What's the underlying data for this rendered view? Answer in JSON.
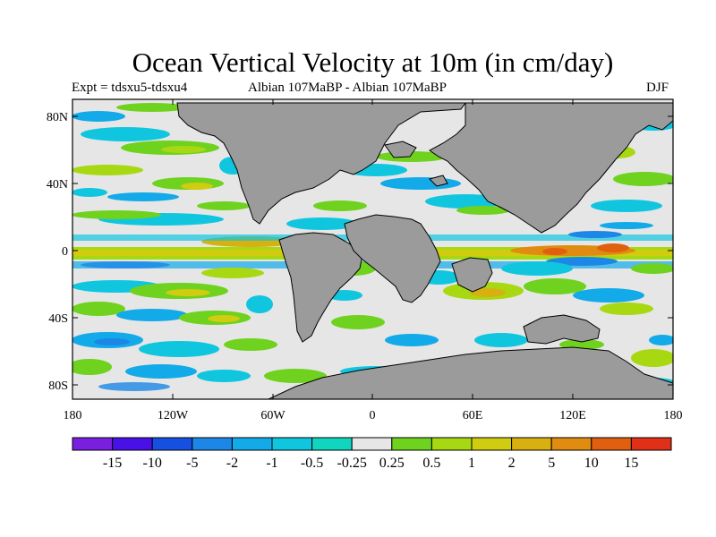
{
  "title": "Ocean Vertical Velocity at 10m (in cm/day)",
  "expt": "Expt = tdsxu5-tdsxu4",
  "comparison": "Albian   107MaBP - Albian   107MaBP",
  "season": "DJF",
  "lat_ticks": [
    "80N",
    "40N",
    "0",
    "40S",
    "80S"
  ],
  "lon_ticks": [
    "180",
    "120W",
    "60W",
    "0",
    "60E",
    "120E",
    "180"
  ],
  "colorbar": {
    "colors": [
      "#7a1fe0",
      "#4a10e8",
      "#1650e0",
      "#1c87e6",
      "#12aae8",
      "#10c6df",
      "#10d6c0",
      "#e6e6e6",
      "#6ed21e",
      "#a8d812",
      "#d0cc10",
      "#d8b010",
      "#e08c10",
      "#e06010",
      "#e03018"
    ],
    "labels": [
      "-15",
      "-10",
      "-5",
      "-2",
      "-1",
      "-0.5",
      "-0.25",
      "0.25",
      "0.5",
      "1",
      "2",
      "5",
      "10",
      "15"
    ]
  },
  "colors": {
    "land": "#9b9b9b",
    "ocean_background": "#e6e6e6",
    "frame": "#000000"
  }
}
